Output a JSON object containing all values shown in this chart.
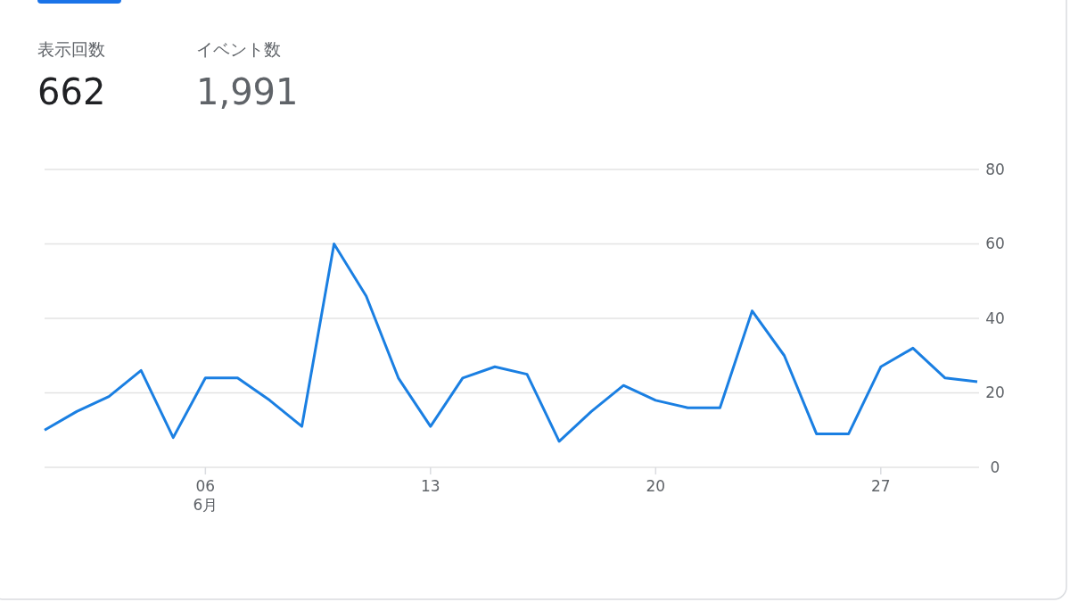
{
  "chart_data": {
    "type": "line",
    "annotations": [
      "表示回数",
      "662",
      "イベント数",
      "1,991"
    ],
    "x": [
      "--06-01",
      "--06-02",
      "--06-03",
      "--06-04",
      "--06-05",
      "--06-06",
      "--06-07",
      "--06-08",
      "--06-09",
      "--06-10",
      "--06-11",
      "--06-12",
      "--06-13",
      "--06-14",
      "--06-15",
      "--06-16",
      "--06-17",
      "--06-18",
      "--06-19",
      "--06-20",
      "--06-21",
      "--06-22",
      "--06-23",
      "--06-24",
      "--06-25",
      "--06-26",
      "--06-27",
      "--06-28",
      "--06-29",
      "--06-30"
    ],
    "series": [
      {
        "color": "#1a7fe2",
        "values": [
          10,
          15,
          19,
          26,
          8,
          24,
          24,
          18,
          11,
          60,
          46,
          24,
          11,
          24,
          27,
          25,
          7,
          15,
          22,
          18,
          16,
          16,
          42,
          30,
          9,
          9,
          27,
          32,
          24,
          23
        ]
      }
    ],
    "xlim": [
      "--06-01",
      "--06-30"
    ],
    "xticks": [
      {
        "value": "--06-06",
        "label": "06\n6月"
      },
      {
        "value": "--06-13",
        "label": "13"
      },
      {
        "value": "--06-20",
        "label": "20"
      },
      {
        "value": "--06-27",
        "label": "27"
      }
    ],
    "ylim": [
      0,
      80
    ],
    "yticks": [
      0,
      20,
      40,
      60,
      80
    ],
    "grid": "y",
    "marker": "none",
    "line_style": "solid"
  }
}
